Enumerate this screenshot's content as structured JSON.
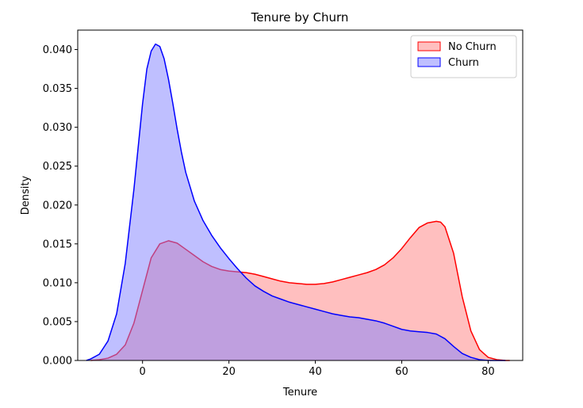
{
  "chart_data": {
    "type": "area",
    "title": "Tenure by Churn",
    "xlabel": "Tenure",
    "ylabel": "Density",
    "xlim": [
      -15,
      88
    ],
    "ylim": [
      0,
      0.0425
    ],
    "xticks": [
      0,
      20,
      40,
      60,
      80
    ],
    "xtick_labels": [
      "0",
      "20",
      "40",
      "60",
      "80"
    ],
    "yticks": [
      0,
      0.005,
      0.01,
      0.015,
      0.02,
      0.025,
      0.03,
      0.035,
      0.04
    ],
    "ytick_labels": [
      "0.000",
      "0.005",
      "0.010",
      "0.015",
      "0.020",
      "0.025",
      "0.030",
      "0.035",
      "0.040"
    ],
    "grid": false,
    "legend_position": "top-right",
    "series": [
      {
        "name": "No Churn",
        "color": "#ff0000",
        "fill": "#ff8080",
        "x": [
          -12,
          -10,
          -8,
          -6,
          -4,
          -2,
          0,
          2,
          4,
          6,
          8,
          10,
          12,
          14,
          16,
          18,
          20,
          22,
          24,
          26,
          28,
          30,
          32,
          34,
          36,
          38,
          40,
          42,
          44,
          46,
          48,
          50,
          52,
          54,
          56,
          58,
          60,
          62,
          64,
          66,
          68,
          69,
          70,
          72,
          74,
          76,
          78,
          80,
          82,
          84,
          85
        ],
        "y": [
          0.0,
          0.0001,
          0.0003,
          0.0008,
          0.002,
          0.0048,
          0.009,
          0.0132,
          0.015,
          0.0154,
          0.0151,
          0.0143,
          0.0135,
          0.0127,
          0.0121,
          0.0117,
          0.0115,
          0.0114,
          0.0113,
          0.0111,
          0.0108,
          0.0105,
          0.0102,
          0.01,
          0.0099,
          0.0098,
          0.0098,
          0.0099,
          0.0101,
          0.0104,
          0.0107,
          0.011,
          0.0113,
          0.0117,
          0.0123,
          0.0132,
          0.0144,
          0.0158,
          0.0171,
          0.0177,
          0.0179,
          0.0178,
          0.0172,
          0.0138,
          0.0082,
          0.0038,
          0.0014,
          0.0004,
          0.0001,
          0.0,
          0.0
        ]
      },
      {
        "name": "Churn",
        "color": "#0000ff",
        "fill": "#8080ff",
        "x": [
          -13,
          -12,
          -10,
          -8,
          -6,
          -4,
          -2,
          0,
          1,
          2,
          3,
          4,
          5,
          6,
          7,
          8,
          9,
          10,
          12,
          14,
          16,
          18,
          20,
          22,
          24,
          26,
          28,
          30,
          32,
          34,
          36,
          38,
          40,
          42,
          44,
          46,
          48,
          50,
          52,
          54,
          56,
          58,
          60,
          62,
          64,
          66,
          68,
          70,
          72,
          74,
          76,
          78,
          80,
          82,
          84
        ],
        "y": [
          0.0,
          0.0002,
          0.0008,
          0.0025,
          0.006,
          0.0125,
          0.022,
          0.033,
          0.0375,
          0.0398,
          0.0407,
          0.0404,
          0.0388,
          0.0362,
          0.0331,
          0.0298,
          0.0268,
          0.0242,
          0.0205,
          0.018,
          0.0161,
          0.0145,
          0.0131,
          0.0118,
          0.0106,
          0.0096,
          0.0089,
          0.0083,
          0.0079,
          0.0075,
          0.0072,
          0.0069,
          0.0066,
          0.0063,
          0.006,
          0.0058,
          0.0056,
          0.0055,
          0.0053,
          0.0051,
          0.0048,
          0.0044,
          0.004,
          0.0038,
          0.0037,
          0.0036,
          0.0034,
          0.0028,
          0.0018,
          0.0009,
          0.0004,
          0.0001,
          0.0,
          0.0,
          0.0
        ]
      }
    ]
  }
}
